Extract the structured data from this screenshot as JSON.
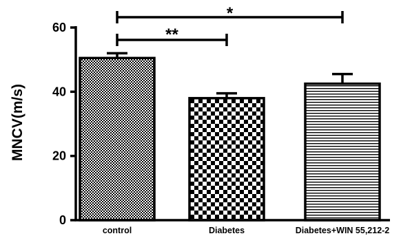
{
  "chart_data": {
    "type": "bar",
    "categories": [
      "control",
      "Diabetes",
      "Diabetes+WIN 55,212-2"
    ],
    "values": [
      50.5,
      38.0,
      42.5
    ],
    "errors": [
      1.5,
      1.5,
      3.0
    ],
    "ylabel": "MNCV(m/s)",
    "xlabel": "",
    "ylim": [
      0,
      60
    ],
    "yticks": [
      0,
      20,
      40,
      60
    ],
    "ytick_labels": [
      "0",
      "20",
      "40",
      "60"
    ],
    "bar_fills": [
      "fine-checker",
      "coarse-checker",
      "horizontal-stripes"
    ],
    "significance": [
      {
        "from": "control",
        "to": "Diabetes",
        "label": "**"
      },
      {
        "from": "control",
        "to": "Diabetes+WIN 55,212-2",
        "label": "*"
      }
    ],
    "grid": false,
    "legend": "none"
  }
}
